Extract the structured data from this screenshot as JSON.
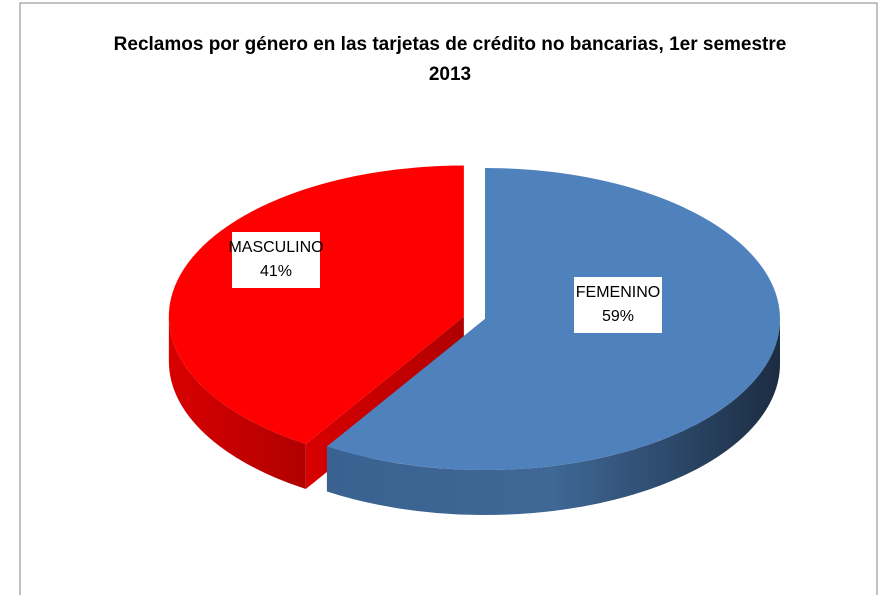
{
  "chart_data": {
    "type": "pie",
    "title": "Reclamos por género en las tarjetas de crédito no bancarias, 1er semestre 2013",
    "categories": [
      "FEMENINO",
      "MASCULINO"
    ],
    "values": [
      59,
      41
    ],
    "value_labels": [
      "59%",
      "41%"
    ],
    "colors": [
      "#4f81bd",
      "#ff0000"
    ],
    "exploded": [
      false,
      true
    ]
  }
}
